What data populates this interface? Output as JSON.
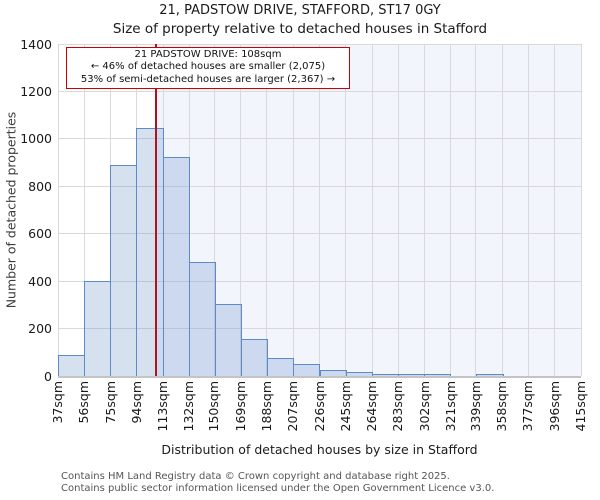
{
  "title": "21, PADSTOW DRIVE, STAFFORD, ST17 0GY",
  "subtitle": "Size of property relative to detached houses in Stafford",
  "annotation": {
    "line1": "21 PADSTOW DRIVE: 108sqm",
    "line2": "← 46% of detached houses are smaller (2,075)",
    "line3": "53% of semi-detached houses are larger (2,367) →"
  },
  "y_axis": {
    "label": "Number of detached properties",
    "ticks": [
      0,
      200,
      400,
      600,
      800,
      1000,
      1200,
      1400
    ]
  },
  "x_axis": {
    "title": "Distribution of detached houses by size in Stafford",
    "tick_labels": [
      "37sqm",
      "56sqm",
      "75sqm",
      "94sqm",
      "113sqm",
      "132sqm",
      "150sqm",
      "169sqm",
      "188sqm",
      "207sqm",
      "226sqm",
      "245sqm",
      "264sqm",
      "283sqm",
      "302sqm",
      "321sqm",
      "339sqm",
      "358sqm",
      "377sqm",
      "396sqm",
      "415sqm"
    ]
  },
  "chart_data": {
    "type": "bar",
    "title": "21, PADSTOW DRIVE, STAFFORD, ST17 0GY",
    "subtitle": "Size of property relative to detached houses in Stafford",
    "xlabel": "Distribution of detached houses by size in Stafford",
    "ylabel": "Number of detached properties",
    "xlim_sqm": [
      37,
      415
    ],
    "ylim": [
      0,
      1400
    ],
    "grid": true,
    "legend": false,
    "bin_edges_sqm": [
      37,
      56,
      75,
      94,
      113,
      132,
      150,
      169,
      188,
      207,
      226,
      245,
      264,
      283,
      302,
      321,
      339,
      358,
      377,
      396,
      415
    ],
    "values": [
      90,
      400,
      890,
      1045,
      925,
      480,
      305,
      155,
      75,
      50,
      25,
      15,
      5,
      5,
      5,
      0,
      5,
      0,
      0,
      0
    ],
    "marker_line": {
      "x_sqm": 108,
      "color": "#ab1320"
    },
    "shaded_region": {
      "from_sqm": 108,
      "to_sqm": 415,
      "color": "#f2f5fc"
    }
  },
  "colors": {
    "bar_fill": "#d9e3f3",
    "bar_border": "#5d8bc7",
    "marker_red": "#ab1320",
    "annotation_border": "#cc0000",
    "gridline": "#d9d9dd",
    "shade": "#f2f5fc"
  },
  "footer": {
    "line1": "Contains HM Land Registry data © Crown copyright and database right 2025.",
    "line2": "Contains public sector information licensed under the Open Government Licence v3.0."
  }
}
